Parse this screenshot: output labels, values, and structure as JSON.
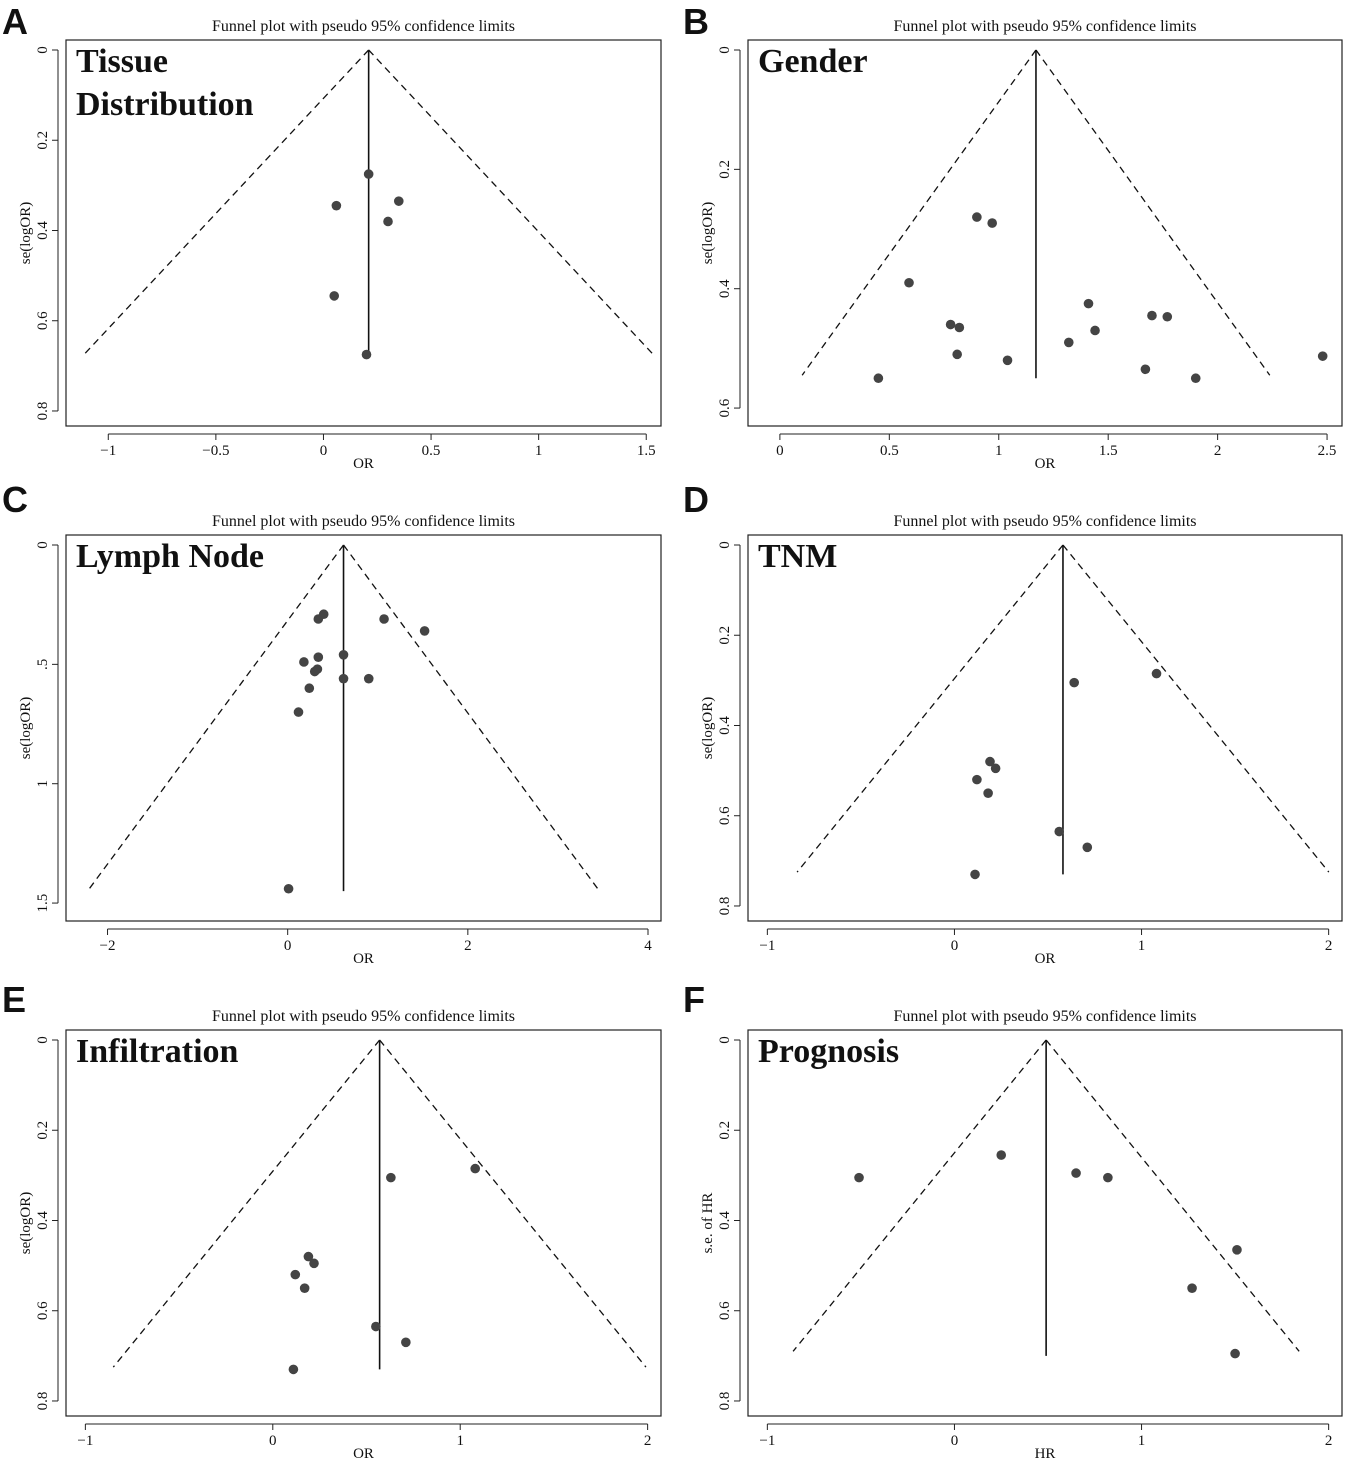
{
  "chart_data": [
    {
      "letter": "A",
      "type": "scatter",
      "title": "Funnel plot with pseudo 95% confidence limits",
      "label_lines": [
        "Tissue",
        "Distribution"
      ],
      "xlabel": "OR",
      "ylabel": "se(logOR)",
      "xlim": [
        -1.15,
        1.55
      ],
      "ylim": [
        0,
        0.82
      ],
      "xticks": [
        -1,
        -0.5,
        0,
        0.5,
        1,
        1.5
      ],
      "xtick_labels": [
        "−1",
        "−0.5",
        "0",
        "0.5",
        "1",
        "1.5"
      ],
      "yticks": [
        0,
        0.2,
        0.4,
        0.6,
        0.8
      ],
      "ytick_labels": [
        "0",
        "0.2",
        "0.4",
        "0.6",
        "0.8"
      ],
      "pooled": 0.21,
      "funnel_bottom": 0.68,
      "line_bottom": 0.68,
      "points": [
        [
          0.21,
          0.275
        ],
        [
          0.35,
          0.335
        ],
        [
          0.06,
          0.345
        ],
        [
          0.3,
          0.38
        ],
        [
          0.05,
          0.545
        ],
        [
          0.2,
          0.675
        ]
      ]
    },
    {
      "letter": "B",
      "type": "scatter",
      "title": "Funnel plot with pseudo 95% confidence limits",
      "label_lines": [
        "Gender"
      ],
      "xlabel": "OR",
      "ylabel": "se(logOR)",
      "xlim": [
        -0.1,
        2.55
      ],
      "ylim": [
        0,
        0.62
      ],
      "xticks": [
        0,
        0.5,
        1,
        1.5,
        2,
        2.5
      ],
      "xtick_labels": [
        "0",
        "0.5",
        "1",
        "1.5",
        "2",
        "2.5"
      ],
      "yticks": [
        0,
        0.2,
        0.4,
        0.6
      ],
      "ytick_labels": [
        "0",
        "0.2",
        "0.4",
        "0.6"
      ],
      "pooled": 1.17,
      "funnel_bottom": 0.545,
      "line_bottom": 0.55,
      "points": [
        [
          0.9,
          0.28
        ],
        [
          0.97,
          0.29
        ],
        [
          0.59,
          0.39
        ],
        [
          1.41,
          0.425
        ],
        [
          1.7,
          0.445
        ],
        [
          1.77,
          0.447
        ],
        [
          0.78,
          0.46
        ],
        [
          0.82,
          0.465
        ],
        [
          1.44,
          0.47
        ],
        [
          1.32,
          0.49
        ],
        [
          0.81,
          0.51
        ],
        [
          2.48,
          0.513
        ],
        [
          1.04,
          0.52
        ],
        [
          1.67,
          0.535
        ],
        [
          0.45,
          0.55
        ],
        [
          1.9,
          0.55
        ]
      ]
    },
    {
      "letter": "C",
      "type": "scatter",
      "title": "Funnel plot with pseudo 95% confidence limits",
      "label_lines": [
        "Lymph Node"
      ],
      "xlabel": "OR",
      "ylabel": "se(logOR)",
      "xlim": [
        -2.35,
        4.1
      ],
      "ylim": [
        0,
        1.55
      ],
      "xticks": [
        -2,
        0,
        2,
        4
      ],
      "xtick_labels": [
        "−2",
        "0",
        "2",
        "4"
      ],
      "yticks": [
        0,
        0.5,
        1,
        1.5
      ],
      "ytick_labels": [
        "0",
        ".5",
        "1",
        "1.5"
      ],
      "pooled": 0.62,
      "funnel_bottom": 1.45,
      "line_bottom": 1.45,
      "points": [
        [
          0.4,
          0.29
        ],
        [
          0.34,
          0.31
        ],
        [
          1.07,
          0.31
        ],
        [
          1.52,
          0.36
        ],
        [
          0.62,
          0.46
        ],
        [
          0.34,
          0.47
        ],
        [
          0.18,
          0.49
        ],
        [
          0.33,
          0.52
        ],
        [
          0.3,
          0.53
        ],
        [
          0.62,
          0.56
        ],
        [
          0.9,
          0.56
        ],
        [
          0.24,
          0.6
        ],
        [
          0.12,
          0.7
        ],
        [
          0.01,
          1.44
        ]
      ]
    },
    {
      "letter": "D",
      "type": "scatter",
      "title": "Funnel plot with pseudo 95% confidence limits",
      "label_lines": [
        "TNM"
      ],
      "xlabel": "OR",
      "ylabel": "se(logOR)",
      "xlim": [
        -1.05,
        2.05
      ],
      "ylim": [
        0,
        0.82
      ],
      "xticks": [
        -1,
        0,
        1,
        2
      ],
      "xtick_labels": [
        "−1",
        "0",
        "1",
        "2"
      ],
      "yticks": [
        0,
        0.2,
        0.4,
        0.6,
        0.8
      ],
      "ytick_labels": [
        "0",
        "0.2",
        "0.4",
        "0.6",
        "0.8"
      ],
      "pooled": 0.58,
      "funnel_bottom": 0.725,
      "line_bottom": 0.73,
      "points": [
        [
          1.08,
          0.285
        ],
        [
          0.64,
          0.305
        ],
        [
          0.19,
          0.48
        ],
        [
          0.22,
          0.495
        ],
        [
          0.12,
          0.52
        ],
        [
          0.18,
          0.55
        ],
        [
          0.56,
          0.635
        ],
        [
          0.71,
          0.67
        ],
        [
          0.11,
          0.73
        ]
      ]
    },
    {
      "letter": "E",
      "type": "scatter",
      "title": "Funnel plot with pseudo 95% confidence limits",
      "label_lines": [
        "Infiltration"
      ],
      "xlabel": "OR",
      "ylabel": "se(logOR)",
      "xlim": [
        -1.05,
        2.05
      ],
      "ylim": [
        0,
        0.82
      ],
      "xticks": [
        -1,
        0,
        1,
        2
      ],
      "xtick_labels": [
        "−1",
        "0",
        "1",
        "2"
      ],
      "yticks": [
        0,
        0.2,
        0.4,
        0.6,
        0.8
      ],
      "ytick_labels": [
        "0",
        "0.2",
        "0.4",
        "0.6",
        "0.8"
      ],
      "pooled": 0.57,
      "funnel_bottom": 0.725,
      "line_bottom": 0.73,
      "points": [
        [
          1.08,
          0.285
        ],
        [
          0.63,
          0.305
        ],
        [
          0.19,
          0.48
        ],
        [
          0.22,
          0.495
        ],
        [
          0.12,
          0.52
        ],
        [
          0.17,
          0.55
        ],
        [
          0.55,
          0.635
        ],
        [
          0.71,
          0.67
        ],
        [
          0.11,
          0.73
        ]
      ]
    },
    {
      "letter": "F",
      "type": "scatter",
      "title": "Funnel plot with pseudo 95% confidence limits",
      "label_lines": [
        "Prognosis"
      ],
      "xlabel": "HR",
      "ylabel": "s.e. of HR",
      "xlim": [
        -1.05,
        2.05
      ],
      "ylim": [
        0,
        0.82
      ],
      "xticks": [
        -1,
        0,
        1,
        2
      ],
      "xtick_labels": [
        "−1",
        "0",
        "1",
        "2"
      ],
      "yticks": [
        0,
        0.2,
        0.4,
        0.6,
        0.8
      ],
      "ytick_labels": [
        "0",
        "0.2",
        "0.4",
        "0.6",
        "0.8"
      ],
      "pooled": 0.49,
      "funnel_bottom": 0.69,
      "line_bottom": 0.7,
      "points": [
        [
          0.25,
          0.255
        ],
        [
          0.65,
          0.295
        ],
        [
          -0.51,
          0.305
        ],
        [
          0.82,
          0.305
        ],
        [
          1.51,
          0.465
        ],
        [
          1.27,
          0.55
        ],
        [
          1.5,
          0.695
        ]
      ]
    }
  ]
}
